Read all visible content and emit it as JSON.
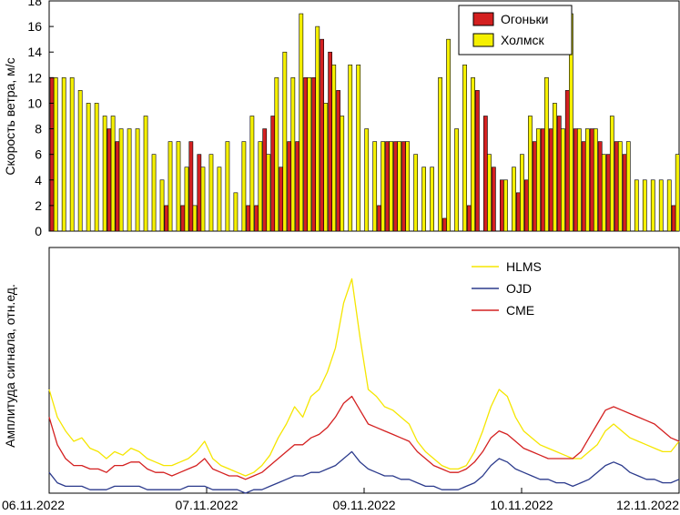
{
  "chart_data": [
    {
      "type": "bar",
      "ylabel": "Скорость ветра, м/с",
      "ylim": [
        0,
        18
      ],
      "yticks": [
        0,
        2,
        4,
        6,
        8,
        10,
        12,
        14,
        16,
        18
      ],
      "legend_position": "top-right",
      "colors": {
        "Огоньки": "#d42020",
        "Холмск": "#f5f000"
      },
      "series": [
        {
          "name": "Огоньки",
          "values": [
            12,
            0,
            0,
            0,
            0,
            0,
            0,
            8,
            7,
            0,
            0,
            0,
            0,
            0,
            2,
            0,
            2,
            7,
            6,
            0,
            0,
            0,
            0,
            0,
            2,
            2,
            8,
            9,
            5,
            7,
            7,
            12,
            12,
            15,
            14,
            11,
            0,
            0,
            0,
            0,
            2,
            7,
            7,
            7,
            0,
            0,
            0,
            0,
            1,
            0,
            0,
            2,
            11,
            9,
            5,
            4,
            0,
            3,
            4,
            7,
            8,
            8,
            9,
            11,
            8,
            7,
            8,
            7,
            6,
            7,
            6,
            0,
            0,
            0,
            0,
            0,
            2
          ]
        },
        {
          "name": "Холмск",
          "values": [
            12,
            12,
            12,
            11,
            10,
            10,
            9,
            9,
            8,
            8,
            8,
            9,
            6,
            4,
            7,
            7,
            5,
            2,
            5,
            6,
            5,
            7,
            3,
            7,
            9,
            7,
            6,
            12,
            14,
            12,
            17,
            12,
            16,
            10,
            13,
            9,
            13,
            13,
            8,
            7,
            7,
            7,
            7,
            7,
            6,
            5,
            5,
            12,
            15,
            8,
            13,
            12,
            0,
            6,
            0,
            4,
            5,
            6,
            9,
            8,
            12,
            10,
            8,
            17,
            8,
            8,
            8,
            6,
            9,
            7,
            7,
            4,
            4,
            4,
            4,
            4,
            6
          ]
        }
      ]
    },
    {
      "type": "line",
      "ylabel": "Амплитуда сигнала, отн.ед.",
      "xticklabels": [
        "06.11.2022",
        "07.11.2022",
        "09.11.2022",
        "10.11.2022",
        "12.11.2022"
      ],
      "legend_position": "top-center",
      "series": [
        {
          "name": "HLMS",
          "color": "#f5e600",
          "values": [
            0.3,
            0.22,
            0.18,
            0.15,
            0.16,
            0.13,
            0.12,
            0.1,
            0.12,
            0.11,
            0.13,
            0.12,
            0.1,
            0.09,
            0.08,
            0.08,
            0.09,
            0.1,
            0.12,
            0.15,
            0.1,
            0.08,
            0.07,
            0.06,
            0.05,
            0.06,
            0.08,
            0.11,
            0.16,
            0.2,
            0.25,
            0.22,
            0.28,
            0.3,
            0.35,
            0.42,
            0.55,
            0.62,
            0.45,
            0.3,
            0.28,
            0.25,
            0.24,
            0.22,
            0.2,
            0.15,
            0.12,
            0.1,
            0.08,
            0.07,
            0.07,
            0.08,
            0.12,
            0.18,
            0.25,
            0.3,
            0.28,
            0.22,
            0.18,
            0.16,
            0.14,
            0.13,
            0.12,
            0.11,
            0.1,
            0.1,
            0.12,
            0.14,
            0.18,
            0.2,
            0.18,
            0.16,
            0.15,
            0.14,
            0.13,
            0.12,
            0.12,
            0.15
          ]
        },
        {
          "name": "OJD",
          "color": "#2b3a8c",
          "values": [
            0.06,
            0.03,
            0.02,
            0.02,
            0.02,
            0.01,
            0.01,
            0.01,
            0.02,
            0.02,
            0.02,
            0.02,
            0.01,
            0.01,
            0.01,
            0.01,
            0.01,
            0.02,
            0.02,
            0.02,
            0.01,
            0.01,
            0.01,
            0.01,
            0.0,
            0.01,
            0.01,
            0.02,
            0.03,
            0.04,
            0.05,
            0.05,
            0.06,
            0.06,
            0.07,
            0.08,
            0.1,
            0.12,
            0.09,
            0.07,
            0.06,
            0.05,
            0.05,
            0.04,
            0.04,
            0.03,
            0.02,
            0.02,
            0.01,
            0.01,
            0.01,
            0.02,
            0.03,
            0.05,
            0.08,
            0.1,
            0.09,
            0.07,
            0.06,
            0.05,
            0.04,
            0.04,
            0.03,
            0.03,
            0.02,
            0.03,
            0.04,
            0.06,
            0.08,
            0.09,
            0.08,
            0.06,
            0.05,
            0.04,
            0.04,
            0.03,
            0.03,
            0.04
          ]
        },
        {
          "name": "CME",
          "color": "#d42020",
          "values": [
            0.22,
            0.14,
            0.1,
            0.08,
            0.08,
            0.07,
            0.07,
            0.06,
            0.08,
            0.08,
            0.09,
            0.09,
            0.07,
            0.06,
            0.06,
            0.05,
            0.06,
            0.07,
            0.08,
            0.1,
            0.07,
            0.06,
            0.05,
            0.05,
            0.04,
            0.05,
            0.06,
            0.08,
            0.1,
            0.12,
            0.14,
            0.14,
            0.16,
            0.17,
            0.19,
            0.22,
            0.26,
            0.28,
            0.24,
            0.2,
            0.19,
            0.18,
            0.17,
            0.16,
            0.15,
            0.12,
            0.1,
            0.08,
            0.07,
            0.06,
            0.06,
            0.07,
            0.09,
            0.12,
            0.16,
            0.18,
            0.17,
            0.15,
            0.13,
            0.12,
            0.11,
            0.1,
            0.1,
            0.1,
            0.1,
            0.12,
            0.16,
            0.2,
            0.24,
            0.25,
            0.24,
            0.23,
            0.22,
            0.21,
            0.2,
            0.18,
            0.16,
            0.15
          ]
        }
      ]
    }
  ]
}
